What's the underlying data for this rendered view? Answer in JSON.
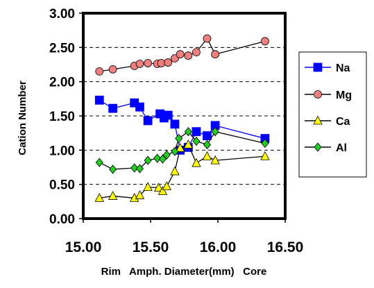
{
  "chart_data": {
    "type": "scatter",
    "xlabel": "Rim   Amph. Diameter(mm)   Core",
    "ylabel": "Cation  Number",
    "xlim": [
      15.0,
      16.5
    ],
    "ylim": [
      0.0,
      3.0
    ],
    "x_ticks": [
      15.0,
      15.5,
      16.0,
      16.5
    ],
    "x_tick_labels": [
      "15.00",
      "15.50",
      "16.00",
      "16.50"
    ],
    "y_ticks": [
      0.0,
      0.5,
      1.0,
      1.5,
      2.0,
      2.5,
      3.0
    ],
    "y_tick_labels": [
      "0.00",
      "0.50",
      "1.00",
      "1.50",
      "2.00",
      "2.50",
      "3.00"
    ],
    "grid": "horizontal dashed",
    "legend_position": "right",
    "series": [
      {
        "name": "Na",
        "marker": "square",
        "color": "#0000ff",
        "line_color": "#0000ff",
        "x": [
          15.12,
          15.22,
          15.38,
          15.42,
          15.48,
          15.57,
          15.6,
          15.63,
          15.68,
          15.72,
          15.78,
          15.84,
          15.92,
          15.98,
          16.35
        ],
        "y": [
          1.73,
          1.61,
          1.69,
          1.63,
          1.43,
          1.53,
          1.47,
          1.51,
          1.38,
          1.0,
          1.04,
          1.27,
          1.21,
          1.36,
          1.17
        ]
      },
      {
        "name": "Mg",
        "marker": "circle",
        "color": "#f08080",
        "line_color": "#000000",
        "x": [
          15.12,
          15.22,
          15.38,
          15.42,
          15.48,
          15.55,
          15.58,
          15.63,
          15.68,
          15.72,
          15.78,
          15.84,
          15.92,
          15.98,
          16.35
        ],
        "y": [
          2.15,
          2.18,
          2.23,
          2.26,
          2.27,
          2.26,
          2.27,
          2.28,
          2.34,
          2.4,
          2.38,
          2.43,
          2.63,
          2.4,
          2.59
        ]
      },
      {
        "name": "Ca",
        "marker": "triangle",
        "color": "#ffff00",
        "line_color": "#000000",
        "x": [
          15.12,
          15.22,
          15.38,
          15.42,
          15.48,
          15.56,
          15.59,
          15.62,
          15.68,
          15.72,
          15.78,
          15.84,
          15.92,
          15.98,
          16.35
        ],
        "y": [
          0.3,
          0.33,
          0.3,
          0.34,
          0.46,
          0.45,
          0.4,
          0.47,
          0.69,
          1.03,
          1.08,
          0.81,
          0.91,
          0.85,
          0.91
        ]
      },
      {
        "name": "Al",
        "marker": "diamond",
        "color": "#22cc22",
        "line_color": "#000000",
        "x": [
          15.12,
          15.22,
          15.38,
          15.42,
          15.48,
          15.55,
          15.59,
          15.62,
          15.68,
          15.71,
          15.78,
          15.84,
          15.92,
          15.98,
          16.35
        ],
        "y": [
          0.82,
          0.72,
          0.74,
          0.73,
          0.85,
          0.88,
          0.87,
          0.93,
          0.98,
          1.17,
          1.27,
          1.13,
          1.08,
          1.27,
          1.1
        ]
      }
    ]
  }
}
